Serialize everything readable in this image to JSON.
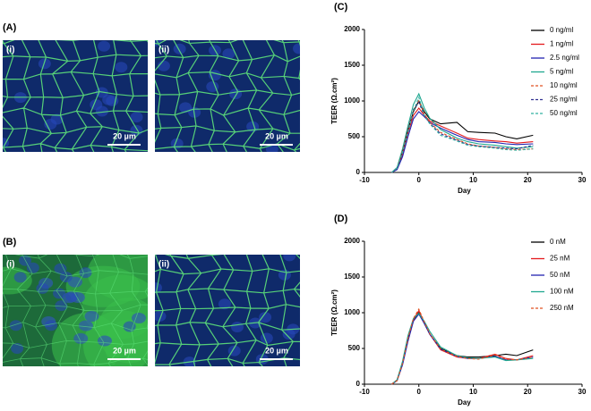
{
  "figure": {
    "panels": [
      {
        "label": "(A)",
        "images": [
          {
            "label": "(i)",
            "scale": "20 µm"
          },
          {
            "label": "(ii)",
            "scale": "20 µm"
          }
        ]
      },
      {
        "label": "(B)",
        "images": [
          {
            "label": "(i)",
            "scale": "20 µm"
          },
          {
            "label": "(ii)",
            "scale": "20 µm"
          }
        ]
      }
    ]
  },
  "chart_data": [
    {
      "type": "line",
      "label": "(C)",
      "xlabel": "Day",
      "ylabel": "TEER (Ω.cm²)",
      "x": [
        -5,
        -4,
        -3,
        -2,
        -1,
        0,
        1,
        2,
        4,
        7,
        9,
        11,
        14,
        16,
        18,
        21
      ],
      "xlim": [
        -10,
        30
      ],
      "xticks": [
        -10,
        0,
        10,
        20,
        30
      ],
      "ylim": [
        0,
        2000
      ],
      "yticks": [
        0,
        500,
        1000,
        1500,
        2000
      ],
      "series": [
        {
          "name": "0 ng/ml",
          "color": "#000000",
          "dashed": false,
          "values": [
            0,
            60,
            300,
            600,
            850,
            1000,
            850,
            750,
            680,
            700,
            570,
            560,
            550,
            500,
            470,
            520
          ]
        },
        {
          "name": "1 ng/ml",
          "color": "#e41a1c",
          "dashed": false,
          "values": [
            0,
            50,
            250,
            550,
            800,
            900,
            800,
            720,
            650,
            550,
            480,
            460,
            440,
            430,
            410,
            430
          ]
        },
        {
          "name": "2.5 ng/ml",
          "color": "#2424b0",
          "dashed": false,
          "values": [
            0,
            40,
            220,
            500,
            750,
            850,
            780,
            700,
            620,
            520,
            460,
            430,
            420,
            400,
            390,
            400
          ]
        },
        {
          "name": "5 ng/ml",
          "color": "#20a890",
          "dashed": false,
          "values": [
            0,
            70,
            330,
            650,
            950,
            1100,
            900,
            760,
            600,
            480,
            430,
            400,
            380,
            360,
            340,
            360
          ]
        },
        {
          "name": "10 ng/ml",
          "color": "#e05020",
          "dashed": true,
          "values": [
            0,
            60,
            300,
            600,
            880,
            1000,
            820,
            700,
            560,
            460,
            400,
            370,
            350,
            330,
            320,
            330
          ]
        },
        {
          "name": "25 ng/ml",
          "color": "#303090",
          "dashed": true,
          "values": [
            0,
            60,
            280,
            580,
            880,
            980,
            800,
            690,
            540,
            450,
            390,
            370,
            350,
            340,
            330,
            380
          ]
        },
        {
          "name": "50 ng/ml",
          "color": "#30b0a0",
          "dashed": true,
          "values": [
            0,
            60,
            280,
            560,
            860,
            1050,
            800,
            680,
            520,
            440,
            380,
            360,
            340,
            320,
            310,
            330
          ]
        }
      ]
    },
    {
      "type": "line",
      "label": "(D)",
      "xlabel": "Day",
      "ylabel": "TEER (Ω.cm²)",
      "x": [
        -5,
        -4,
        -3,
        -2,
        -1,
        0,
        1,
        2,
        4,
        7,
        9,
        11,
        14,
        16,
        18,
        21
      ],
      "xlim": [
        -10,
        30
      ],
      "xticks": [
        -10,
        0,
        10,
        20,
        30
      ],
      "ylim": [
        0,
        2000
      ],
      "yticks": [
        0,
        500,
        1000,
        1500,
        2000
      ],
      "series": [
        {
          "name": "0 nM",
          "color": "#000000",
          "dashed": false,
          "values": [
            0,
            60,
            300,
            650,
            900,
            1000,
            850,
            700,
            500,
            400,
            380,
            380,
            400,
            420,
            400,
            480
          ]
        },
        {
          "name": "25 nM",
          "color": "#e41a1c",
          "dashed": false,
          "values": [
            0,
            50,
            280,
            620,
            900,
            1030,
            860,
            700,
            480,
            380,
            360,
            360,
            420,
            360,
            340,
            400
          ]
        },
        {
          "name": "50 nM",
          "color": "#2424b0",
          "dashed": false,
          "values": [
            0,
            50,
            270,
            600,
            880,
            980,
            850,
            700,
            490,
            390,
            360,
            360,
            390,
            340,
            340,
            380
          ]
        },
        {
          "name": "100 nM",
          "color": "#20a890",
          "dashed": false,
          "values": [
            0,
            60,
            320,
            680,
            920,
            990,
            880,
            740,
            520,
            400,
            370,
            360,
            380,
            330,
            340,
            360
          ]
        },
        {
          "name": "250 nM",
          "color": "#e05020",
          "dashed": true,
          "values": [
            0,
            50,
            290,
            640,
            920,
            1050,
            870,
            710,
            490,
            390,
            360,
            350,
            410,
            350,
            340,
            380
          ]
        }
      ]
    }
  ]
}
